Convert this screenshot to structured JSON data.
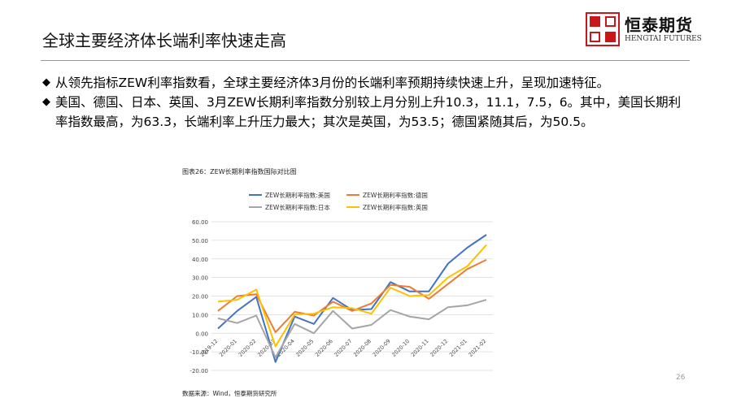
{
  "slide": {
    "title": "全球主要经济体长端利率快速走高",
    "bullet1": "从领先指标ZEW利率指数看，全球主要经济体3月份的长端利率预期持续快速上升，呈现加速特征。",
    "bullet2": "美国、德国、日本、英国、3月ZEW长期利率指数分别较上月分别上升10.3，11.1，7.5，6。其中，美国长期利率指数最高，为63.3，长端利率上升压力最大；其次是英国，为53.5；德国紧随其后，为50.5。",
    "page_number": "26"
  },
  "logo": {
    "cn": "恒泰期货",
    "en": "HENGTAI FUTURES"
  },
  "chart_caption": "图表26：ZEW长期利率指数国际对比图",
  "source_note": "数据来源：Wind，恒泰期货研究所",
  "chart_data": {
    "type": "line",
    "x": [
      "2019-12",
      "2020-01",
      "2020-02",
      "2020-03",
      "2020-04",
      "2020-05",
      "2020-06",
      "2020-07",
      "2020-08",
      "2020-09",
      "2020-10",
      "2020-11",
      "2020-12",
      "2021-01",
      "2021-02"
    ],
    "ylim": [
      -20,
      60
    ],
    "yticks": [
      "60.00",
      "50.00",
      "40.00",
      "30.00",
      "20.00",
      "10.00",
      "0.00",
      "-10.00",
      "-20.00"
    ],
    "grid": true,
    "legend_position": "top",
    "series": [
      {
        "name": "ZEW长期利率指数:美国",
        "color": "#4472c4",
        "values": [
          2.5,
          12,
          19.5,
          -15.5,
          9,
          5,
          19,
          12.5,
          13,
          27.5,
          22.5,
          22.5,
          37.5,
          46,
          53
        ]
      },
      {
        "name": "ZEW长期利率指数:德国",
        "color": "#ed7d31",
        "values": [
          12,
          20,
          21,
          0.5,
          11.5,
          9.5,
          17,
          12,
          16,
          26,
          25,
          18.5,
          26.5,
          34.5,
          39.5
        ]
      },
      {
        "name": "ZEW长期利率指数:日本",
        "color": "#a5a5a5",
        "values": [
          8,
          5.5,
          9.5,
          -13,
          5,
          0,
          12,
          2.5,
          4.5,
          12.5,
          9,
          7.5,
          14,
          15,
          18
        ]
      },
      {
        "name": "ZEW长期利率指数:英国",
        "color": "#ffc000",
        "values": [
          17,
          18,
          23.5,
          -7,
          10,
          10.5,
          14,
          13.5,
          10.5,
          24.5,
          20,
          20.5,
          30,
          36,
          47.5
        ]
      }
    ]
  }
}
